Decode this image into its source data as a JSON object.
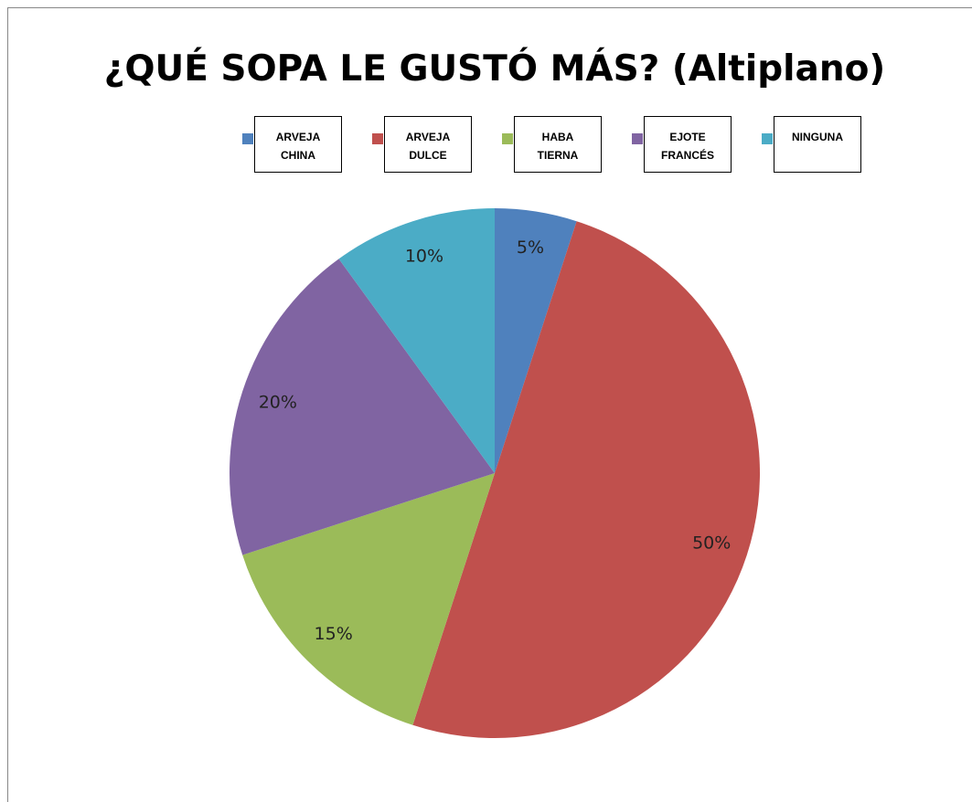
{
  "chart_data": {
    "type": "pie",
    "title": "¿QUÉ SOPA LE GUSTÓ MÁS? (Altiplano)",
    "categories": [
      "ARVEJA CHINA",
      "ARVEJA DULCE",
      "HABA TIERNA",
      "EJOTE FRANCÉS",
      "NINGUNA"
    ],
    "values": [
      5,
      50,
      15,
      20,
      10
    ],
    "value_labels": [
      "5%",
      "50%",
      "15%",
      "20%",
      "10%"
    ],
    "colors": [
      "#4f81bd",
      "#c0504d",
      "#9bbb59",
      "#8064a2",
      "#4bacc6"
    ],
    "legend": "top"
  }
}
